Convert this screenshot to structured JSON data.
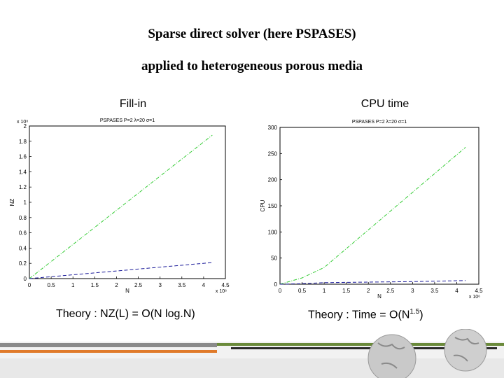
{
  "slide": {
    "title_line1": "Sparse direct solver (here PSPASES)",
    "title_line2": "applied to heterogeneous porous media",
    "left_caption": "Fill-in",
    "right_caption": "CPU time",
    "left_theory": "Theory : NZ(L) = O(N log.N)",
    "right_theory_prefix": "Theory : Time = O(N",
    "right_theory_exp": "1.5",
    "right_theory_suffix": ")"
  },
  "chart_data": [
    {
      "type": "line",
      "title": "PSPASES P=2 λ=20 σ=1",
      "xlabel": "N",
      "ylabel": "NZ",
      "x_exponent": "x 10⁶",
      "y_exponent": "x 10⁸",
      "xlim": [
        0,
        4.5
      ],
      "ylim": [
        0,
        2
      ],
      "xticks": [
        "0",
        "0.5",
        "1",
        "1.5",
        "2",
        "2.5",
        "3",
        "3.5",
        "4",
        "4.5"
      ],
      "yticks": [
        "0",
        "0.2",
        "0.4",
        "0.6",
        "0.8",
        "1",
        "1.2",
        "1.4",
        "1.6",
        "1.8",
        "2"
      ],
      "series": [
        {
          "color": "#33cc33",
          "style": "dash-dot",
          "x": [
            0,
            4.2
          ],
          "y": [
            0,
            1.88
          ]
        },
        {
          "color": "#1a1a99",
          "style": "dashed",
          "x": [
            0,
            4.2
          ],
          "y": [
            0,
            0.21
          ]
        }
      ]
    },
    {
      "type": "line",
      "title": "PSPASES P=2 λ=20 σ=1",
      "xlabel": "N",
      "ylabel": "CPU",
      "x_exponent": "x 10⁶",
      "xlim": [
        0,
        4.5
      ],
      "ylim": [
        0,
        300
      ],
      "xticks": [
        "0",
        "0.5",
        "1",
        "1.5",
        "2",
        "2.5",
        "3",
        "3.5",
        "4",
        "4.5"
      ],
      "yticks": [
        "0",
        "50",
        "100",
        "150",
        "200",
        "250",
        "300"
      ],
      "series": [
        {
          "color": "#33cc33",
          "style": "dash-dot",
          "x": [
            0,
            0.5,
            1.0,
            4.2
          ],
          "y": [
            0,
            12,
            32,
            262
          ]
        },
        {
          "color": "#1a1a99",
          "style": "dashed",
          "x": [
            0,
            0.5,
            1.0,
            2.0,
            3.0,
            4.2
          ],
          "y": [
            0,
            1,
            3,
            4,
            5,
            7
          ]
        }
      ]
    }
  ]
}
